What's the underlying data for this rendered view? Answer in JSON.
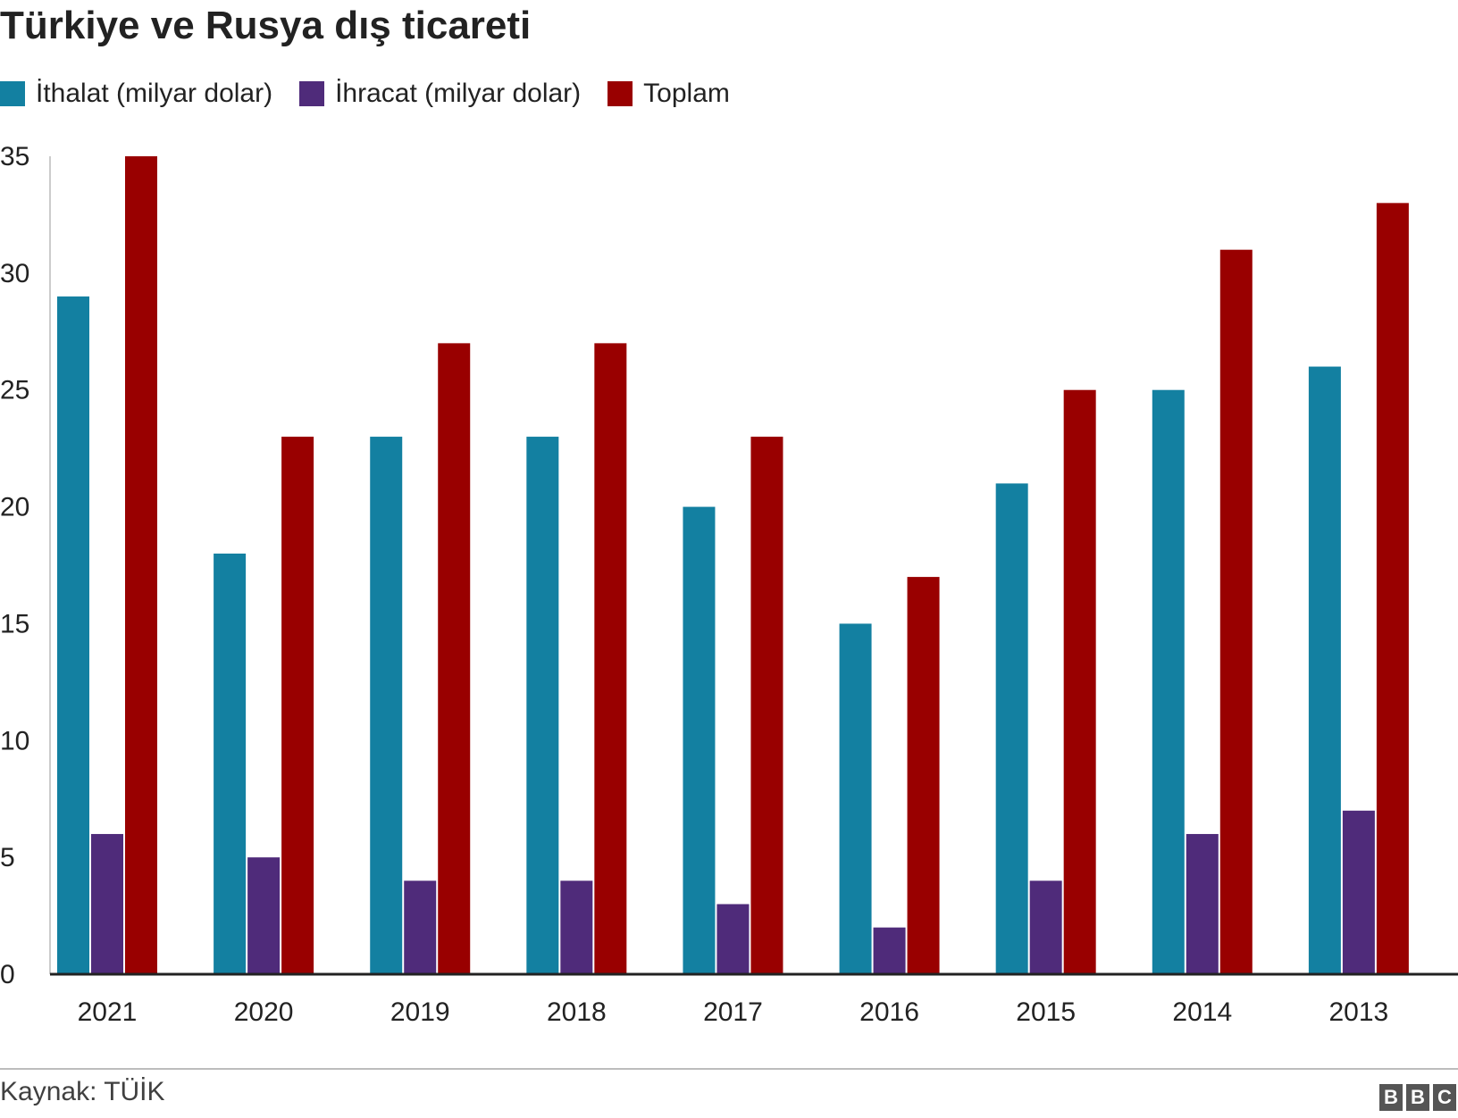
{
  "title": "Türkiye ve Rusya dış ticareti",
  "legend": [
    {
      "label": "İthalat (milyar dolar)",
      "color": "#1380a1"
    },
    {
      "label": "İhracat (milyar dolar)",
      "color": "#4f2b7a"
    },
    {
      "label": "Toplam",
      "color": "#990000"
    }
  ],
  "chart_data": {
    "type": "bar",
    "title": "Türkiye ve Rusya dış ticareti",
    "categories": [
      "2021",
      "2020",
      "2019",
      "2018",
      "2017",
      "2016",
      "2015",
      "2014",
      "2013"
    ],
    "series": [
      {
        "name": "İthalat (milyar dolar)",
        "color": "#1380a1",
        "values": [
          29,
          18,
          23,
          23,
          20,
          15,
          21,
          25,
          26
        ]
      },
      {
        "name": "İhracat (milyar dolar)",
        "color": "#4f2b7a",
        "values": [
          6,
          5,
          4,
          4,
          3,
          2,
          4,
          6,
          7
        ]
      },
      {
        "name": "Toplam",
        "color": "#990000",
        "values": [
          35,
          23,
          27,
          27,
          23,
          17,
          25,
          31,
          33
        ]
      }
    ],
    "y_ticks": [
      "0",
      "5",
      "10",
      "15",
      "20",
      "25",
      "30",
      "35"
    ],
    "ylim": [
      0,
      35
    ],
    "xlabel": "",
    "ylabel": "",
    "grid": false,
    "legend_position": "top-left"
  },
  "footer": {
    "source": "Kaynak: TÜİK",
    "logo_letters": [
      "B",
      "B",
      "C"
    ]
  }
}
